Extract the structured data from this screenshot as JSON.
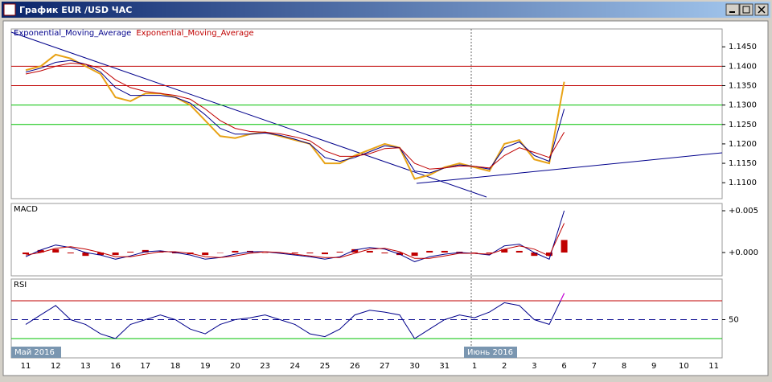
{
  "window": {
    "title": "График EUR /USD  ЧАС"
  },
  "month_labels": [
    "Май 2016",
    "Июнь 2016"
  ],
  "chart_data": [
    {
      "type": "line",
      "panel": "price",
      "categories": [
        "11",
        null,
        "12",
        null,
        "13",
        null,
        "16",
        null,
        "17",
        null,
        "18",
        null,
        "19",
        null,
        "20",
        null,
        "23",
        null,
        "24",
        null,
        "25",
        null,
        "26",
        null,
        "27",
        null,
        "30",
        null,
        "31",
        null,
        "1",
        null,
        "2",
        null,
        "3",
        null,
        "6",
        null,
        "7",
        null,
        "8",
        null,
        "9",
        null,
        "10",
        null,
        "11",
        null
      ],
      "ylim": [
        1.1059,
        1.1496
      ],
      "yticks": [
        {
          "value": 1.11,
          "label": "1.1100"
        },
        {
          "value": 1.115,
          "label": "1.1150"
        },
        {
          "value": 1.12,
          "label": "1.1200"
        },
        {
          "value": 1.125,
          "label": "1.1250"
        },
        {
          "value": 1.13,
          "label": "1.1300"
        },
        {
          "value": 1.135,
          "label": "1.1350"
        },
        {
          "value": 1.14,
          "label": "1.1400"
        },
        {
          "value": 1.145,
          "label": "1.1450"
        }
      ],
      "levels": [
        {
          "value": 1.14,
          "color": "#c00000"
        },
        {
          "value": 1.135,
          "color": "#c00000"
        },
        {
          "value": 1.13,
          "color": "#00c000"
        },
        {
          "value": 1.125,
          "color": "#00c000"
        }
      ],
      "series": [
        {
          "color": "#e8a317",
          "values": [
            1.139,
            1.14,
            1.143,
            1.142,
            1.14,
            1.138,
            1.132,
            1.131,
            1.133,
            1.133,
            1.132,
            1.13,
            1.126,
            1.122,
            1.1215,
            1.1225,
            1.123,
            1.122,
            1.121,
            1.12,
            1.115,
            1.115,
            1.117,
            1.1185,
            1.12,
            1.119,
            1.111,
            1.112,
            1.114,
            1.115,
            1.114,
            1.113,
            1.12,
            1.121,
            1.116,
            1.115,
            1.136,
            null,
            null,
            null,
            null,
            null,
            null,
            null,
            null,
            null,
            null,
            null
          ]
        },
        {
          "name": "Exponential_Moving_Average",
          "color": "#00008b",
          "values": [
            1.1385,
            1.1395,
            1.141,
            1.1415,
            1.1405,
            1.1385,
            1.1345,
            1.1325,
            1.1325,
            1.1325,
            1.132,
            1.1305,
            1.1275,
            1.124,
            1.1225,
            1.1225,
            1.1228,
            1.1222,
            1.1212,
            1.12,
            1.1165,
            1.1155,
            1.1165,
            1.118,
            1.1195,
            1.119,
            1.113,
            1.1125,
            1.1138,
            1.1146,
            1.1142,
            1.1135,
            1.119,
            1.1205,
            1.117,
            1.1155,
            1.129,
            null,
            null,
            null,
            null,
            null,
            null,
            null,
            null,
            null,
            null,
            null
          ]
        },
        {
          "name": "Exponential_Moving_Average",
          "color": "#c00000",
          "values": [
            1.138,
            1.1388,
            1.14,
            1.1408,
            1.1405,
            1.1395,
            1.1365,
            1.1345,
            1.1335,
            1.133,
            1.1325,
            1.1315,
            1.129,
            1.126,
            1.124,
            1.1232,
            1.123,
            1.1226,
            1.1218,
            1.1208,
            1.1182,
            1.1168,
            1.1168,
            1.1175,
            1.1188,
            1.119,
            1.115,
            1.1135,
            1.1138,
            1.1143,
            1.1142,
            1.1138,
            1.117,
            1.119,
            1.1178,
            1.1165,
            1.123,
            null,
            null,
            null,
            null,
            null,
            null,
            null,
            null,
            null,
            null,
            null
          ]
        }
      ]
    },
    {
      "type": "line",
      "panel": "macd",
      "title": "MACD",
      "ylim": [
        -0.00279,
        0.00587
      ],
      "yticks": [
        {
          "value": 0.005,
          "label": "+0.005"
        },
        {
          "value": 0,
          "label": "+0.000"
        }
      ],
      "series": [
        {
          "style": "histogram",
          "color": "#c00000",
          "values": [
            -0.0002,
            0.0003,
            0.0004,
            -0.0001,
            -0.0004,
            -0.0003,
            -0.0003,
            0.0001,
            0.0003,
            0.0001,
            -0.0001,
            -0.0002,
            -0.0003,
            0,
            0.0002,
            0.0002,
            0,
            -0.0001,
            -0.0001,
            -0.0001,
            -0.0002,
            0.0001,
            0.0004,
            0.0002,
            -0.0001,
            -0.0003,
            -0.0004,
            0.0002,
            0.0002,
            0.0001,
            0,
            -0.0001,
            0.0004,
            0.0002,
            -0.0004,
            -0.0004,
            0.0015,
            null,
            null,
            null,
            null,
            null,
            null,
            null,
            null,
            null,
            null,
            null
          ]
        },
        {
          "color": "#00008b",
          "values": [
            -0.0005,
            0.0003,
            0.0009,
            0.0006,
            0,
            -0.0003,
            -0.0008,
            -0.0004,
            0.0001,
            0.0002,
            0,
            -0.0003,
            -0.0008,
            -0.0006,
            -0.0002,
            0.0001,
            0.0001,
            -0.0001,
            -0.0003,
            -0.0005,
            -0.0008,
            -0.0005,
            0.0003,
            0.0006,
            0.0004,
            -0.0002,
            -0.0011,
            -0.0005,
            -0.0002,
            0,
            -0.0001,
            -0.0003,
            0.0008,
            0.001,
            0,
            -0.0008,
            0.005,
            null,
            null,
            null,
            null,
            null,
            null,
            null,
            null,
            null,
            null,
            null
          ]
        },
        {
          "color": "#c00000",
          "values": [
            -0.0003,
            0,
            0.0005,
            0.0007,
            0.0004,
            0,
            -0.0005,
            -0.0005,
            -0.0002,
            0.0001,
            0.0001,
            -0.0001,
            -0.0005,
            -0.0006,
            -0.0004,
            -0.0001,
            0.0001,
            0,
            -0.0002,
            -0.0004,
            -0.0006,
            -0.0006,
            -0.0001,
            0.0004,
            0.0005,
            0.0001,
            -0.0007,
            -0.0007,
            -0.0004,
            -0.0001,
            -0.0001,
            -0.0002,
            0.0004,
            0.0008,
            0.0004,
            -0.0004,
            0.0035,
            null,
            null,
            null,
            null,
            null,
            null,
            null,
            null,
            null,
            null,
            null
          ]
        }
      ]
    },
    {
      "type": "line",
      "panel": "rsi",
      "title": "RSI",
      "ylim": [
        13.8,
        93
      ],
      "yticks": [
        50
      ],
      "grid": true,
      "levels": [
        {
          "value": 70,
          "color": "#c00000"
        },
        {
          "value": 30,
          "color": "#00c000"
        }
      ],
      "overbought_color": "#e000e0",
      "oversold_color": "#00c000",
      "series": [
        {
          "color": "#00008b",
          "values": [
            45,
            55,
            65,
            50,
            45,
            35,
            30,
            45,
            50,
            55,
            50,
            40,
            35,
            45,
            50,
            52,
            55,
            50,
            45,
            35,
            32,
            40,
            55,
            60,
            58,
            55,
            30,
            40,
            50,
            55,
            52,
            58,
            68,
            65,
            50,
            45,
            78,
            null,
            null,
            null,
            null,
            null,
            null,
            null,
            null,
            null,
            null,
            null
          ]
        }
      ]
    }
  ]
}
